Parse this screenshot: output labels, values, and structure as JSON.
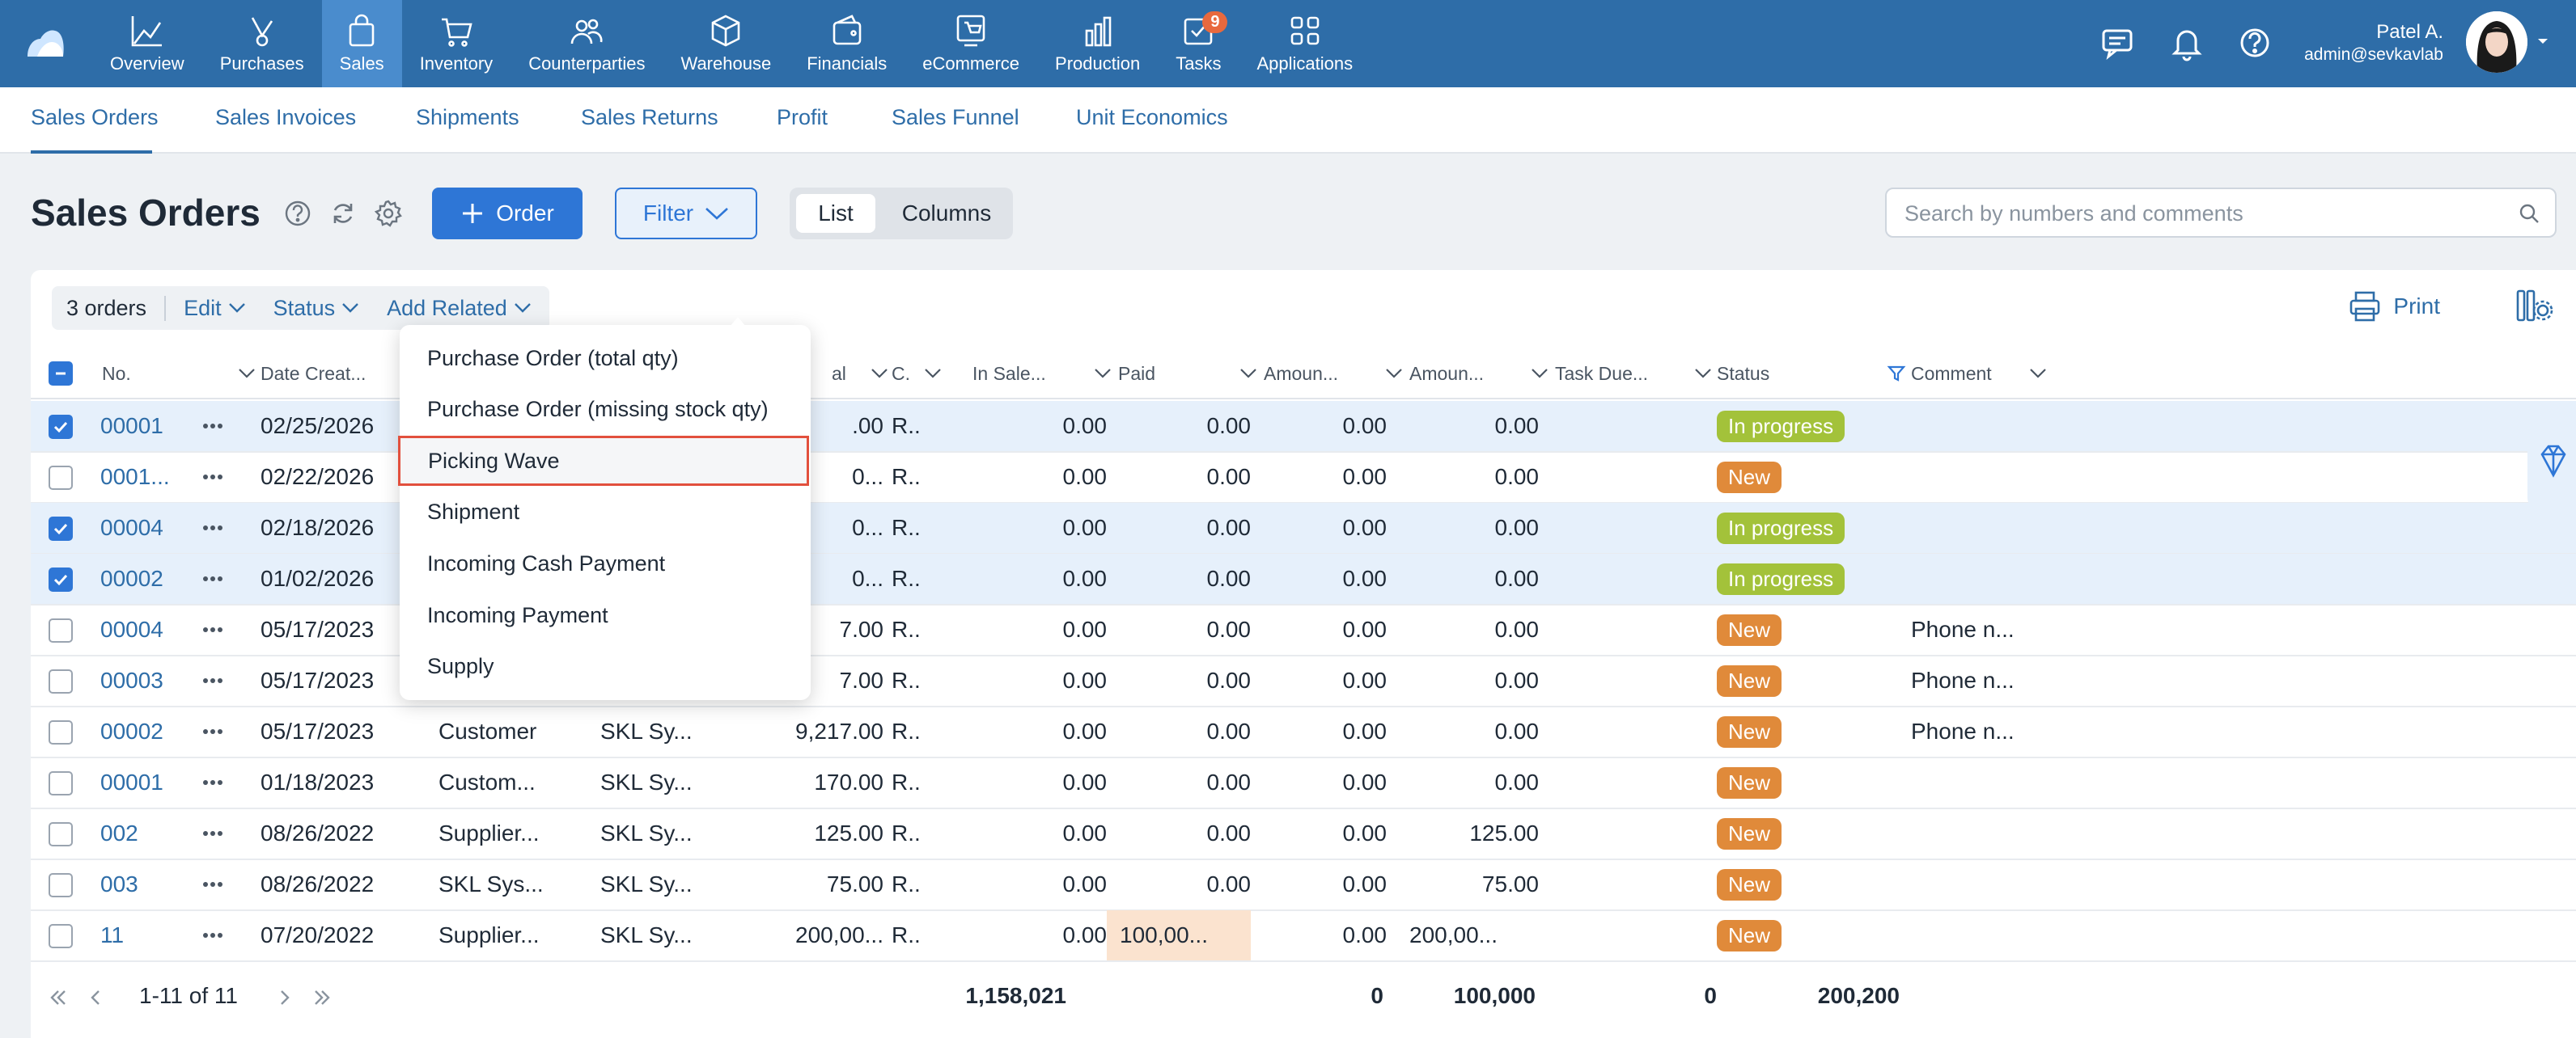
{
  "nav": {
    "items": [
      {
        "label": "Overview",
        "icon": "chart-line-icon"
      },
      {
        "label": "Purchases",
        "icon": "purchases-icon"
      },
      {
        "label": "Sales",
        "icon": "shopping-bag-icon",
        "active": true
      },
      {
        "label": "Inventory",
        "icon": "cart-icon"
      },
      {
        "label": "Counterparties",
        "icon": "users-icon"
      },
      {
        "label": "Warehouse",
        "icon": "box-icon"
      },
      {
        "label": "Financials",
        "icon": "wallet-icon"
      },
      {
        "label": "eCommerce",
        "icon": "ecommerce-icon"
      },
      {
        "label": "Production",
        "icon": "bar-chart-icon"
      },
      {
        "label": "Tasks",
        "icon": "tasks-icon",
        "badge": "9"
      },
      {
        "label": "Applications",
        "icon": "apps-grid-icon"
      }
    ]
  },
  "user": {
    "name": "Patel A.",
    "email": "admin@sevkavlab"
  },
  "subnav": {
    "items": [
      "Sales Orders",
      "Sales Invoices",
      "Shipments",
      "Sales Returns",
      "Profit",
      "Sales Funnel",
      "Unit Economics"
    ]
  },
  "header": {
    "title": "Sales Orders",
    "order_label": "Order",
    "filter_label": "Filter",
    "view_list": "List",
    "view_columns": "Columns"
  },
  "search": {
    "placeholder": "Search by numbers and comments",
    "value": ""
  },
  "toolbar": {
    "count": "3 orders",
    "edit": "Edit",
    "status": "Status",
    "add_related": "Add Related",
    "print": "Print"
  },
  "columns": [
    "No.",
    "Date Creat...",
    "al",
    "C.",
    "In Sale...",
    "Paid",
    "Amoun...",
    "Amoun...",
    "Task Due...",
    "Status",
    "Comment"
  ],
  "rows": [
    {
      "no": "00001",
      "date": "02/25/2026",
      "cp": "",
      "org": "",
      "sum": ".00",
      "c": "R..",
      "in_sale": "0.00",
      "paid": "0.00",
      "amt1": "0.00",
      "amt2": "0.00",
      "status": "In progress",
      "comment": "",
      "checked": true
    },
    {
      "no": "0001...",
      "date": "02/22/2026",
      "cp": "",
      "org": "",
      "sum": "0...",
      "c": "R..",
      "in_sale": "0.00",
      "paid": "0.00",
      "amt1": "0.00",
      "amt2": "0.00",
      "status": "New",
      "comment": "",
      "checked": false
    },
    {
      "no": "00004",
      "date": "02/18/2026",
      "cp": "",
      "org": "",
      "sum": "0...",
      "c": "R..",
      "in_sale": "0.00",
      "paid": "0.00",
      "amt1": "0.00",
      "amt2": "0.00",
      "status": "In progress",
      "comment": "",
      "checked": true
    },
    {
      "no": "00002",
      "date": "01/02/2026",
      "cp": "",
      "org": "",
      "sum": "0...",
      "c": "R..",
      "in_sale": "0.00",
      "paid": "0.00",
      "amt1": "0.00",
      "amt2": "0.00",
      "status": "In progress",
      "comment": "",
      "checked": true
    },
    {
      "no": "00004",
      "date": "05/17/2023",
      "cp": "",
      "org": "",
      "sum": "7.00",
      "c": "R..",
      "in_sale": "0.00",
      "paid": "0.00",
      "amt1": "0.00",
      "amt2": "0.00",
      "status": "New",
      "comment": "Phone n...",
      "checked": false
    },
    {
      "no": "00003",
      "date": "05/17/2023",
      "cp": "",
      "org": "",
      "sum": "7.00",
      "c": "R..",
      "in_sale": "0.00",
      "paid": "0.00",
      "amt1": "0.00",
      "amt2": "0.00",
      "status": "New",
      "comment": "Phone n...",
      "checked": false
    },
    {
      "no": "00002",
      "date": "05/17/2023",
      "cp": "Customer",
      "org": "SKL Sy...",
      "sum": "9,217.00",
      "c": "R..",
      "in_sale": "0.00",
      "paid": "0.00",
      "amt1": "0.00",
      "amt2": "0.00",
      "status": "New",
      "comment": "Phone n...",
      "checked": false
    },
    {
      "no": "00001",
      "date": "01/18/2023",
      "cp": "Custom...",
      "org": "SKL Sy...",
      "sum": "170.00",
      "c": "R..",
      "in_sale": "0.00",
      "paid": "0.00",
      "amt1": "0.00",
      "amt2": "0.00",
      "status": "New",
      "comment": "",
      "checked": false
    },
    {
      "no": "002",
      "date": "08/26/2022",
      "cp": "Supplier...",
      "org": "SKL Sy...",
      "sum": "125.00",
      "c": "R..",
      "in_sale": "0.00",
      "paid": "0.00",
      "amt1": "0.00",
      "amt2": "125.00",
      "status": "New",
      "comment": "",
      "checked": false
    },
    {
      "no": "003",
      "date": "08/26/2022",
      "cp": "SKL Sys...",
      "org": "SKL Sy...",
      "sum": "75.00",
      "c": "R..",
      "in_sale": "0.00",
      "paid": "0.00",
      "amt1": "0.00",
      "amt2": "75.00",
      "status": "New",
      "comment": "",
      "checked": false
    },
    {
      "no": "11",
      "date": "07/20/2022",
      "cp": "Supplier...",
      "org": "SKL Sy...",
      "sum": "200,00...",
      "c": "R..",
      "in_sale": "0.00",
      "paid": "100,00...",
      "amt1": "0.00",
      "amt2": "200,00...",
      "status": "New",
      "comment": "",
      "checked": false
    }
  ],
  "pager": {
    "range": "1-11 of 11"
  },
  "totals": {
    "sum": "1,158,021",
    "in_sale": "0",
    "paid": "100,000",
    "amt1": "0",
    "amt2": "200,200"
  },
  "dropdown": {
    "items": [
      "Purchase Order (total qty)",
      "Purchase Order (missing stock qty)",
      "Picking Wave",
      "Shipment",
      "Incoming Cash Payment",
      "Incoming Payment",
      "Supply"
    ],
    "highlighted": "Picking Wave"
  },
  "colors": {
    "topbar": "#2e6da8",
    "accent": "#2e76d6",
    "in_progress": "#a3c23a",
    "new": "#e08a3a",
    "highlight_border": "#e2503d"
  }
}
